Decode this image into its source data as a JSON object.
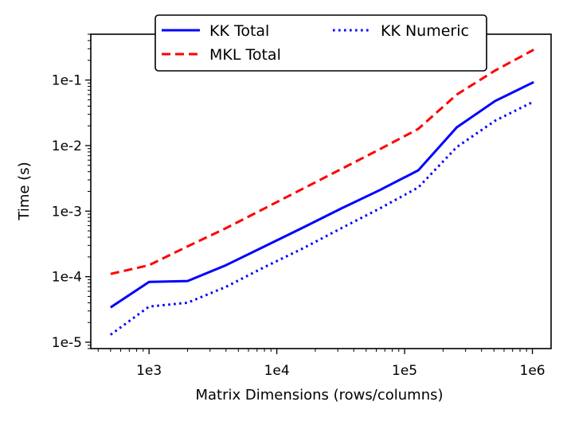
{
  "chart_data": {
    "type": "line",
    "xlabel": "Matrix Dimensions (rows/columns)",
    "ylabel": "Time (s)",
    "xscale": "log",
    "yscale": "log",
    "xlim": [
      350,
      1400000
    ],
    "ylim": [
      8e-06,
      0.5
    ],
    "x_ticks": [
      {
        "value": 1000,
        "label": "1e3"
      },
      {
        "value": 10000,
        "label": "1e4"
      },
      {
        "value": 100000,
        "label": "1e5"
      },
      {
        "value": 1000000,
        "label": "1e6"
      }
    ],
    "y_ticks": [
      {
        "value": 1e-05,
        "label": "1e-5"
      },
      {
        "value": 0.0001,
        "label": "1e-4"
      },
      {
        "value": 0.001,
        "label": "1e-3"
      },
      {
        "value": 0.01,
        "label": "1e-2"
      },
      {
        "value": 0.1,
        "label": "1e-1"
      }
    ],
    "x": [
      500,
      1000,
      2000,
      4000,
      8000,
      16000,
      32000,
      64000,
      128000,
      256000,
      512000,
      1024000
    ],
    "series": [
      {
        "name": "KK Total",
        "color": "#0000ff",
        "style": "solid",
        "values": [
          3.4e-05,
          8.3e-05,
          8.6e-05,
          0.00015,
          0.00029,
          0.00056,
          0.0011,
          0.0021,
          0.0042,
          0.019,
          0.048,
          0.093
        ]
      },
      {
        "name": "MKL Total",
        "color": "#ff0000",
        "style": "dashed",
        "values": [
          0.00011,
          0.00015,
          0.00029,
          0.00055,
          0.0011,
          0.0022,
          0.0044,
          0.0088,
          0.018,
          0.06,
          0.14,
          0.29
        ]
      },
      {
        "name": "KK Numeric",
        "color": "#0000ff",
        "style": "dotted",
        "values": [
          1.3e-05,
          3.5e-05,
          4e-05,
          7e-05,
          0.00014,
          0.00027,
          0.00055,
          0.0011,
          0.0023,
          0.0095,
          0.024,
          0.047
        ]
      }
    ],
    "legend": {
      "placement": "top-center",
      "columns": 2,
      "order": [
        "KK Total",
        "KK Numeric",
        "MKL Total"
      ]
    },
    "grid": false
  }
}
